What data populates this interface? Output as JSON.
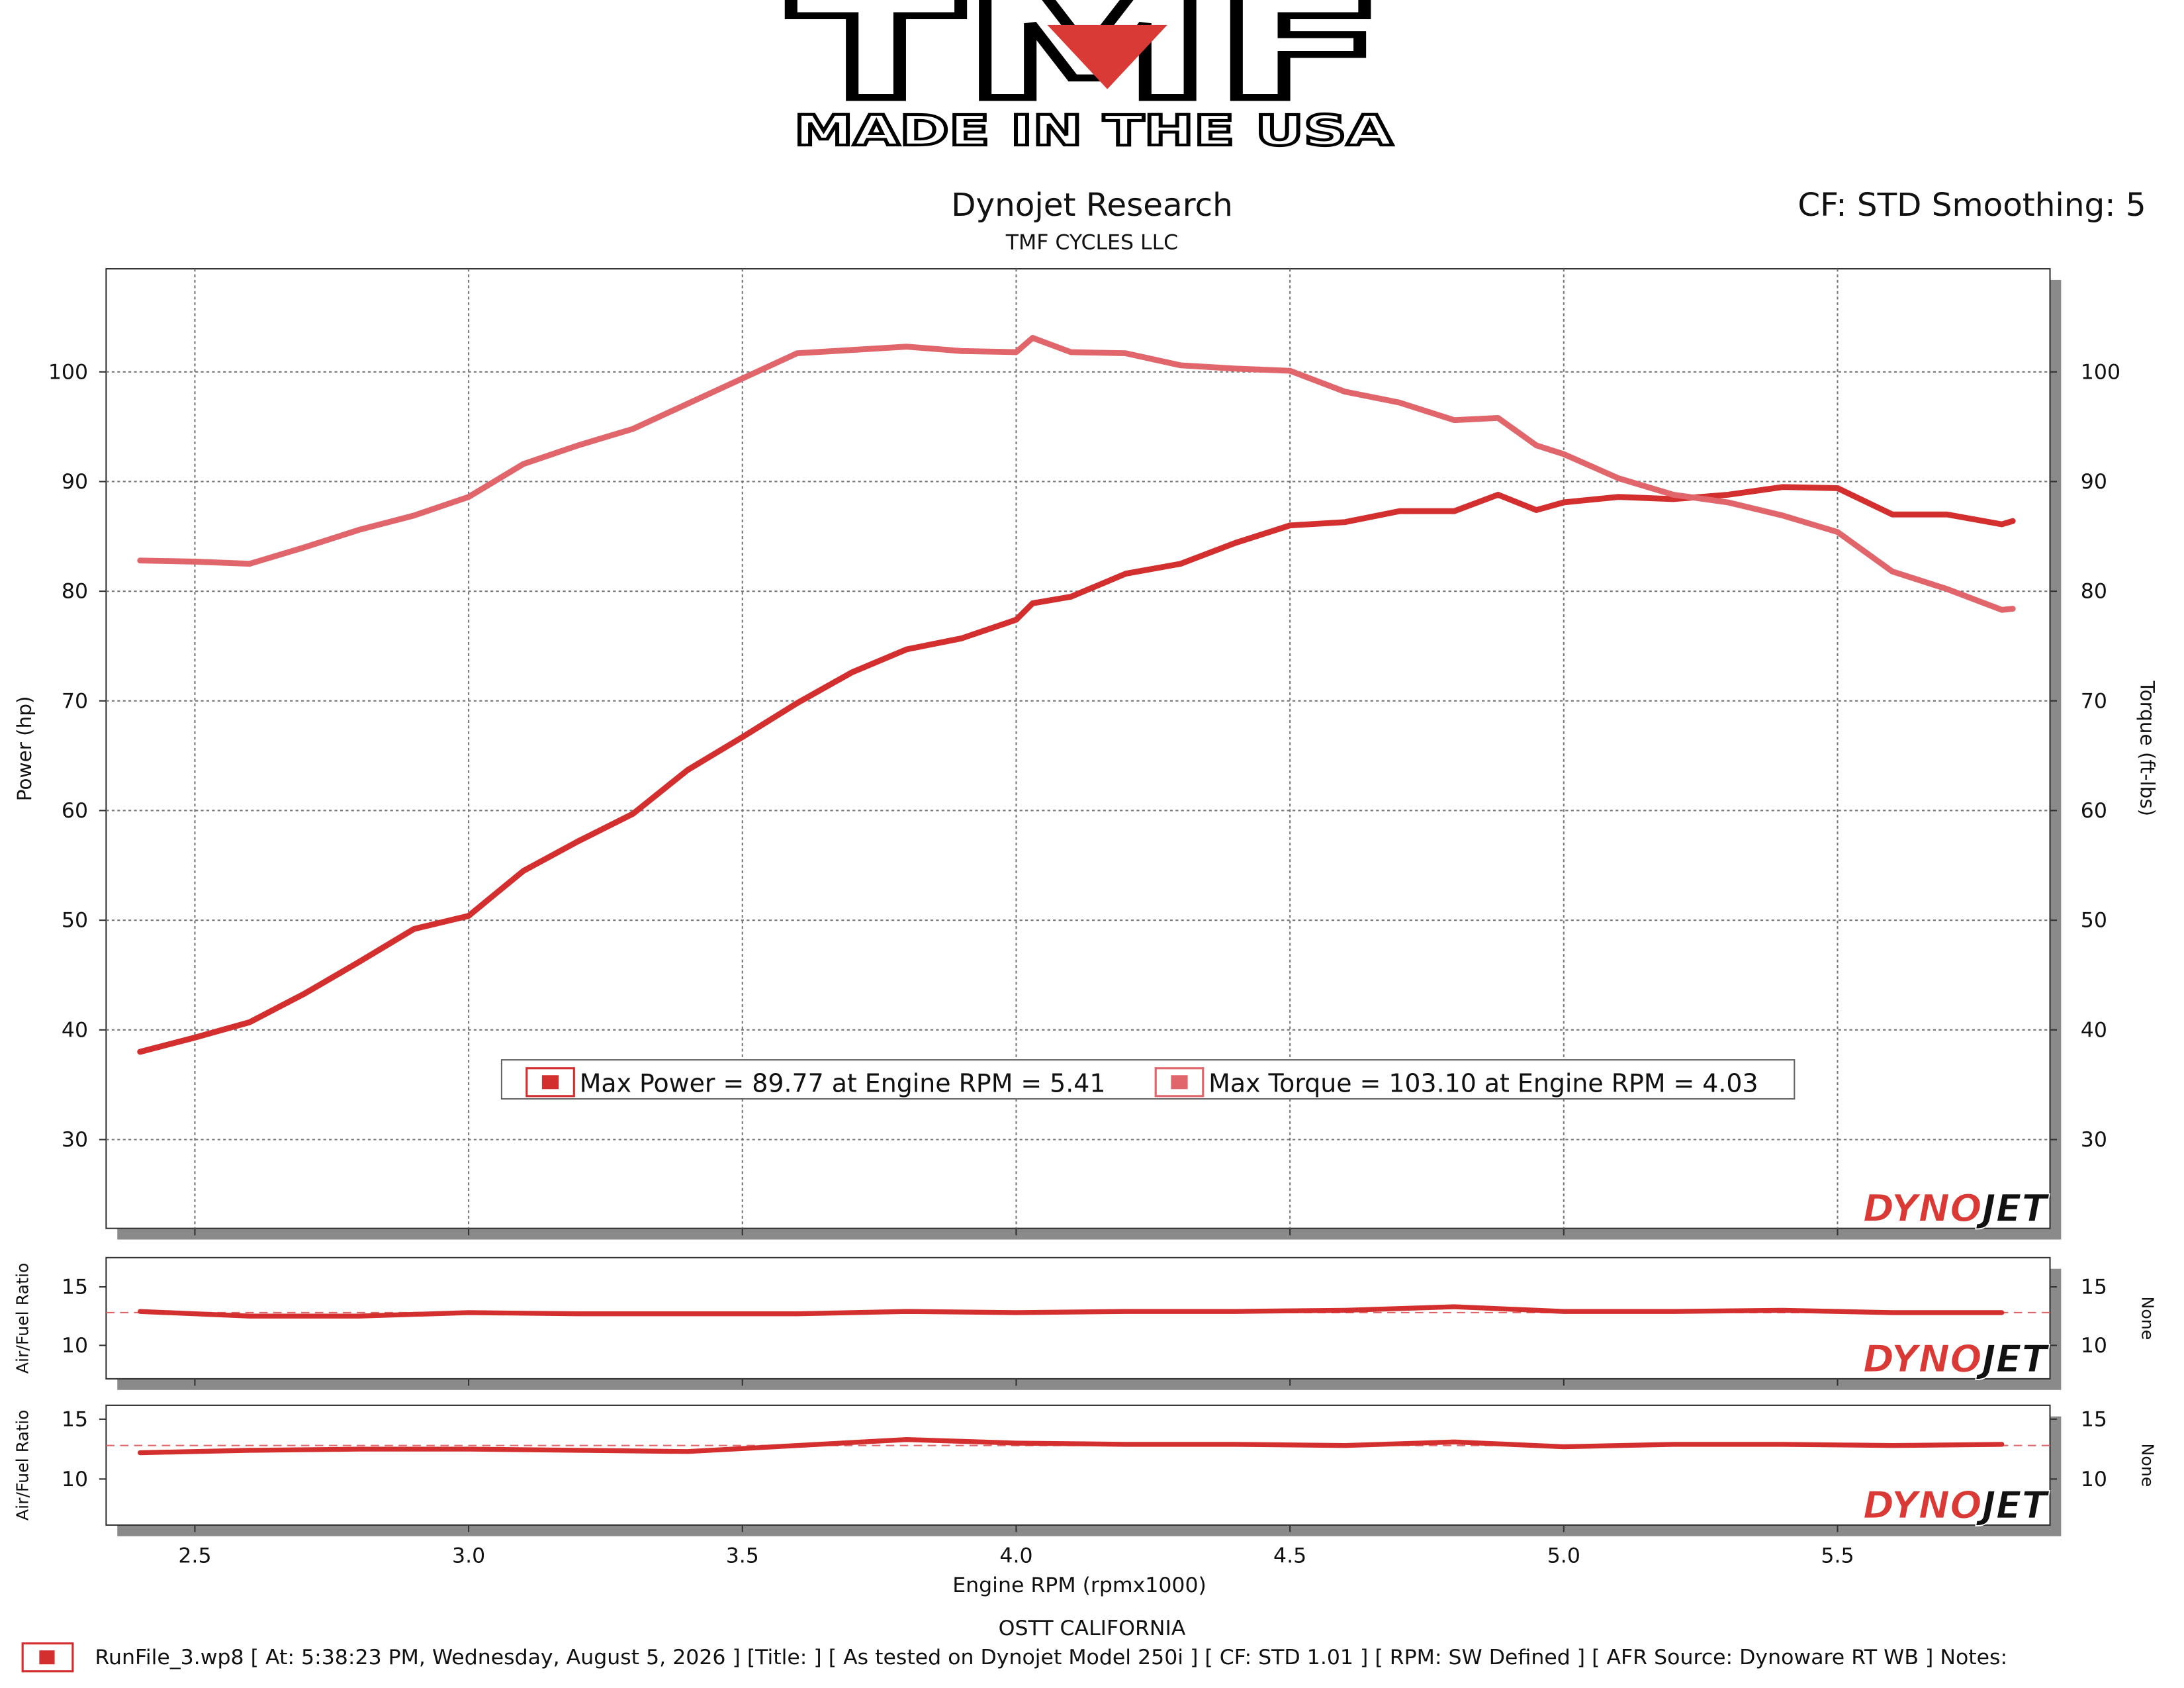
{
  "header": {
    "logo": "TMF",
    "tagline": "MADE IN THE USA",
    "title": "Dynojet Research",
    "subtitle": "TMF CYCLES LLC",
    "settings": "CF: STD Smoothing: 5"
  },
  "watermark": {
    "dyno": "DYNO",
    "jet": "JET"
  },
  "footer": {
    "location": "OSTT CALIFORNIA",
    "run_info": "RunFile_3.wp8 [ At: 5:38:23 PM, Wednesday, August 5, 2026 ] [Title: ]  [ As tested on Dynojet Model 250i ] [ CF: STD 1.01 ] [ RPM: SW Defined ] [ AFR Source: Dynoware RT WB ] Notes:"
  },
  "chart_data": [
    {
      "type": "line",
      "y_label": "Power (hp)",
      "y2_label": "Torque (ft-lbs)",
      "x": [
        2.4,
        2.5,
        2.6,
        2.7,
        2.8,
        2.9,
        3.0,
        3.1,
        3.2,
        3.3,
        3.4,
        3.5,
        3.6,
        3.7,
        3.8,
        3.9,
        4.0,
        4.03,
        4.1,
        4.2,
        4.3,
        4.4,
        4.5,
        4.6,
        4.7,
        4.8,
        4.88,
        4.95,
        5.0,
        5.1,
        5.2,
        5.3,
        5.4,
        5.5,
        5.6,
        5.7,
        5.8,
        5.82
      ],
      "series": [
        {
          "name": "Max Power = 89.77 at Engine RPM = 5.41",
          "color": "#d42f2f",
          "axis": "y",
          "values": [
            38.0,
            39.3,
            40.7,
            43.3,
            46.2,
            49.2,
            50.4,
            54.5,
            57.2,
            59.7,
            63.7,
            66.7,
            69.8,
            72.6,
            74.7,
            75.7,
            77.4,
            78.9,
            79.5,
            81.6,
            82.5,
            84.4,
            86.0,
            86.3,
            87.3,
            87.3,
            88.8,
            87.4,
            88.1,
            88.6,
            88.4,
            88.8,
            89.5,
            89.4,
            87.0,
            87.0,
            86.1,
            86.4
          ]
        },
        {
          "name": "Max Torque = 103.10 at Engine RPM = 4.03",
          "color": "#e0666b",
          "axis": "y2",
          "values": [
            82.8,
            82.7,
            82.5,
            84.0,
            85.6,
            86.9,
            88.6,
            91.6,
            93.3,
            94.8,
            97.1,
            99.4,
            101.7,
            102.0,
            102.3,
            101.9,
            101.8,
            103.1,
            101.8,
            101.7,
            100.6,
            100.3,
            100.1,
            98.2,
            97.2,
            95.6,
            95.8,
            93.3,
            92.5,
            90.3,
            88.8,
            88.1,
            86.9,
            85.4,
            81.8,
            80.2,
            78.3,
            78.4
          ]
        }
      ],
      "xlim": [
        2.338,
        5.888
      ],
      "xticks": [
        2.5,
        {
          "value": 3,
          "label": "3.0"
        },
        3.5,
        {
          "value": 4,
          "label": "4.0"
        },
        4.5,
        {
          "value": 5,
          "label": "5.0"
        },
        5.5
      ],
      "ylim": [
        21.9,
        109.4
      ],
      "yticks": [
        30,
        40,
        50,
        60,
        70,
        80,
        90,
        100
      ],
      "y2lim": [
        21.9,
        109.4
      ],
      "y2ticks": [
        30,
        40,
        50,
        60,
        70,
        80,
        90,
        100
      ],
      "grid": true,
      "legend": "lower center"
    },
    {
      "type": "line",
      "y_label": "Air/Fuel Ratio",
      "y2_label": "None",
      "x": [
        2.4,
        2.6,
        2.8,
        3.0,
        3.2,
        3.4,
        3.6,
        3.8,
        4.0,
        4.2,
        4.4,
        4.6,
        4.8,
        5.0,
        5.2,
        5.4,
        5.6,
        5.8
      ],
      "series": [
        {
          "color": "#d42f2f",
          "axis": "y",
          "values": [
            12.9,
            12.5,
            12.5,
            12.8,
            12.7,
            12.7,
            12.7,
            12.9,
            12.8,
            12.9,
            12.9,
            13.0,
            13.3,
            12.9,
            12.9,
            13.0,
            12.8,
            12.8
          ]
        }
      ],
      "xlim": [
        2.338,
        5.888
      ],
      "xticks": [
        2.5,
        {
          "value": 3,
          "label": "3.0"
        },
        3.5,
        {
          "value": 4,
          "label": "4.0"
        },
        4.5,
        {
          "value": 5,
          "label": "5.0"
        },
        5.5
      ],
      "ylim": [
        7.14,
        17.5
      ],
      "yticks": [
        10,
        15
      ],
      "y2lim": [
        7.14,
        17.5
      ],
      "y2ticks": [
        10,
        15
      ],
      "reference": 12.8,
      "grid": false
    },
    {
      "type": "line",
      "y_label": "Air/Fuel Ratio",
      "y2_label": "None",
      "x_label": "Engine RPM (rpmx1000)",
      "x": [
        2.4,
        2.6,
        2.8,
        3.0,
        3.2,
        3.4,
        3.6,
        3.8,
        4.0,
        4.2,
        4.4,
        4.6,
        4.8,
        5.0,
        5.2,
        5.4,
        5.6,
        5.8
      ],
      "series": [
        {
          "color": "#d42f2f",
          "axis": "y",
          "values": [
            12.2,
            12.4,
            12.5,
            12.5,
            12.4,
            12.3,
            12.8,
            13.3,
            13.0,
            12.9,
            12.9,
            12.8,
            13.1,
            12.7,
            12.9,
            12.9,
            12.8,
            12.9
          ]
        }
      ],
      "xlim": [
        2.338,
        5.888
      ],
      "xticks": [
        2.5,
        {
          "value": 3,
          "label": "3.0"
        },
        3.5,
        {
          "value": 4,
          "label": "4.0"
        },
        4.5,
        {
          "value": 5,
          "label": "5.0"
        },
        5.5
      ],
      "ylim": [
        6.16,
        16.16
      ],
      "yticks": [
        10,
        15
      ],
      "y2lim": [
        6.16,
        16.16
      ],
      "y2ticks": [
        10,
        15
      ],
      "reference": 12.8,
      "grid": false,
      "show_xtick_labels": true
    }
  ]
}
